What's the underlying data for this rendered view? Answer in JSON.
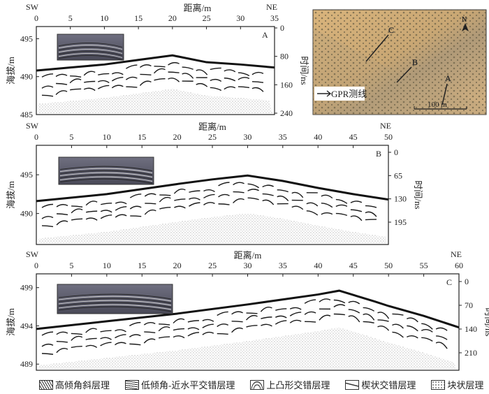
{
  "x_axis_label": "距离/m",
  "left_axis_label": "海拔/m",
  "right_axis_label": "时间/ns",
  "sw_label": "SW",
  "ne_label": "NE",
  "panels": [
    {
      "id": "A",
      "xmax": 35,
      "xticks": [
        0,
        5,
        10,
        15,
        20,
        25,
        30,
        35
      ],
      "elev_ticks": [
        495,
        490,
        485
      ],
      "elev_range": [
        485,
        496.6
      ],
      "time_ticks": [
        0,
        80,
        160,
        240
      ],
      "surface": {
        "x": [
          0,
          5,
          10,
          15,
          20,
          25,
          30,
          35
        ],
        "elev": [
          490.8,
          491.2,
          491.6,
          492.2,
          492.8,
          491.9,
          491.6,
          491.2
        ]
      }
    },
    {
      "id": "B",
      "xmax": 50,
      "xticks": [
        0,
        5,
        10,
        15,
        20,
        25,
        30,
        35,
        40,
        45,
        50
      ],
      "elev_ticks": [
        495,
        490
      ],
      "elev_range": [
        486.0,
        498.8
      ],
      "time_ticks": [
        0,
        65,
        130,
        195
      ],
      "surface": {
        "x": [
          0,
          10,
          20,
          25,
          30,
          35,
          40,
          45,
          50
        ],
        "elev": [
          491.6,
          492.5,
          493.8,
          494.4,
          494.9,
          494.2,
          493.3,
          492.5,
          491.8
        ]
      }
    },
    {
      "id": "C",
      "xmax": 60,
      "xticks": [
        0,
        5,
        10,
        15,
        20,
        25,
        30,
        35,
        40,
        45,
        50,
        55,
        60
      ],
      "elev_ticks": [
        499,
        494,
        489
      ],
      "elev_range": [
        488.2,
        500.8
      ],
      "time_ticks": [
        0,
        70,
        140,
        210
      ],
      "surface": {
        "x": [
          0,
          10,
          20,
          30,
          40,
          43,
          48,
          50,
          55,
          60
        ],
        "elev": [
          493.6,
          494.6,
          495.6,
          496.8,
          498.1,
          498.6,
          497.2,
          496.6,
          495.3,
          493.8
        ]
      }
    }
  ],
  "map": {
    "labels": [
      "A",
      "B",
      "C"
    ],
    "north": "N",
    "legend_text": "GPR测线",
    "scale_label": "100 m"
  },
  "legend": [
    {
      "icon": "high-angle-oblique-icon",
      "label": "高倾角斜层理"
    },
    {
      "icon": "low-angle-cross-icon",
      "label": "低倾角-近水平交错层理"
    },
    {
      "icon": "convex-cross-icon",
      "label": "上凸形交错层理"
    },
    {
      "icon": "wedge-cross-icon",
      "label": "楔状交错层理"
    },
    {
      "icon": "massive-icon",
      "label": "块状层理"
    }
  ]
}
